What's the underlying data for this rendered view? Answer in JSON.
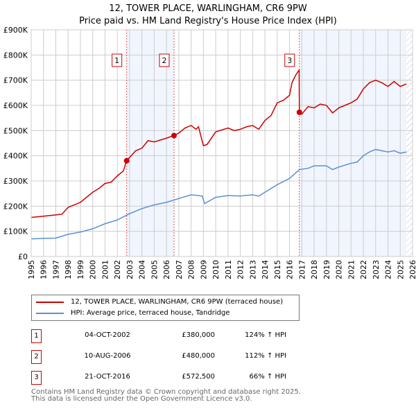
{
  "chart_data": {
    "type": "line",
    "title": "12, TOWER PLACE, WARLINGHAM, CR6 9PW",
    "subtitle": "Price paid vs. HM Land Registry's House Price Index (HPI)",
    "xlim": [
      1995,
      2026
    ],
    "ylim": [
      0,
      900000
    ],
    "y_ticks": [
      "£0",
      "£100K",
      "£200K",
      "£300K",
      "£400K",
      "£500K",
      "£600K",
      "£700K",
      "£800K",
      "£900K"
    ],
    "x_ticks": [
      "1995",
      "1996",
      "1997",
      "1998",
      "1999",
      "2000",
      "2001",
      "2002",
      "2003",
      "2004",
      "2005",
      "2006",
      "2007",
      "2008",
      "2009",
      "2010",
      "2011",
      "2012",
      "2013",
      "2014",
      "2015",
      "2016",
      "2017",
      "2018",
      "2019",
      "2020",
      "2021",
      "2022",
      "2023",
      "2024",
      "2025",
      "2026"
    ],
    "grid": true,
    "series": [
      {
        "name": "12, TOWER PLACE, WARLINGHAM, CR6 9PW (terraced house)",
        "color": "#cc0000",
        "x": [
          1995,
          1996,
          1997,
          1997.5,
          1998,
          1999,
          2000,
          2000.5,
          2001,
          2001.5,
          2002,
          2002.5,
          2002.75,
          2003.5,
          2004,
          2004.5,
          2005,
          2006,
          2006.6,
          2007,
          2007.5,
          2008,
          2008.4,
          2008.6,
          2009,
          2009.3,
          2010,
          2011,
          2011.5,
          2012,
          2012.5,
          2013,
          2013.5,
          2014,
          2014.5,
          2015,
          2015.5,
          2016,
          2016.2,
          2016.5,
          2016.78,
          2016.8,
          2017,
          2017.5,
          2018,
          2018.5,
          2019,
          2019.5,
          2020,
          2020.5,
          2021,
          2021.5,
          2022,
          2022.5,
          2023,
          2023.5,
          2024,
          2024.5,
          2025,
          2025.5
        ],
        "values": [
          155000,
          160000,
          165000,
          168000,
          195000,
          215000,
          255000,
          270000,
          290000,
          295000,
          320000,
          340000,
          380000,
          420000,
          430000,
          460000,
          455000,
          470000,
          480000,
          490000,
          510000,
          520000,
          505000,
          515000,
          440000,
          445000,
          495000,
          510000,
          500000,
          505000,
          515000,
          520000,
          505000,
          540000,
          560000,
          610000,
          620000,
          640000,
          690000,
          720000,
          740000,
          572500,
          565000,
          595000,
          590000,
          605000,
          600000,
          570000,
          590000,
          600000,
          610000,
          625000,
          665000,
          690000,
          700000,
          690000,
          675000,
          695000,
          675000,
          685000
        ]
      },
      {
        "name": "HPI: Average price, terraced house, Tandridge",
        "color": "#5b8fd4",
        "x": [
          1995,
          1996,
          1997,
          1998,
          1999,
          2000,
          2001,
          2002,
          2003,
          2004,
          2005,
          2006,
          2007,
          2008,
          2008.9,
          2009.1,
          2010,
          2011,
          2012,
          2013,
          2013.5,
          2014,
          2015,
          2016,
          2016.8,
          2017.5,
          2018,
          2019,
          2019.5,
          2020,
          2021,
          2021.5,
          2022,
          2022.5,
          2023,
          2024,
          2024.5,
          2025,
          2025.5
        ],
        "values": [
          70000,
          72000,
          73000,
          88000,
          97000,
          110000,
          130000,
          145000,
          170000,
          190000,
          205000,
          215000,
          230000,
          245000,
          240000,
          210000,
          235000,
          242000,
          240000,
          245000,
          240000,
          255000,
          285000,
          310000,
          345000,
          350000,
          360000,
          360000,
          345000,
          355000,
          370000,
          375000,
          400000,
          415000,
          425000,
          415000,
          420000,
          410000,
          415000
        ]
      }
    ],
    "annotations": [
      {
        "label": "1",
        "x": 2002.76,
        "value": 380000
      },
      {
        "label": "2",
        "x": 2006.61,
        "value": 480000
      },
      {
        "label": "3",
        "x": 2016.8,
        "value": 572500
      }
    ],
    "shaded_ranges": [
      [
        2002.76,
        2006.61
      ],
      [
        2016.8,
        2025.5
      ]
    ],
    "hatched_from": 2025.5,
    "legend": {
      "placement": "below"
    }
  },
  "legend": {
    "property": "12, TOWER PLACE, WARLINGHAM, CR6 9PW (terraced house)",
    "hpi": "HPI: Average price, terraced house, Tandridge"
  },
  "sales": [
    {
      "num": "1",
      "date": "04-OCT-2002",
      "price": "£380,000",
      "hpi": "124% ↑ HPI"
    },
    {
      "num": "2",
      "date": "10-AUG-2006",
      "price": "£480,000",
      "hpi": "112% ↑ HPI"
    },
    {
      "num": "3",
      "date": "21-OCT-2016",
      "price": "£572,500",
      "hpi": "66% ↑ HPI"
    }
  ],
  "footer": {
    "line1": "Contains HM Land Registry data © Crown copyright and database right 2025.",
    "line2": "This data is licensed under the Open Government Licence v3.0."
  }
}
